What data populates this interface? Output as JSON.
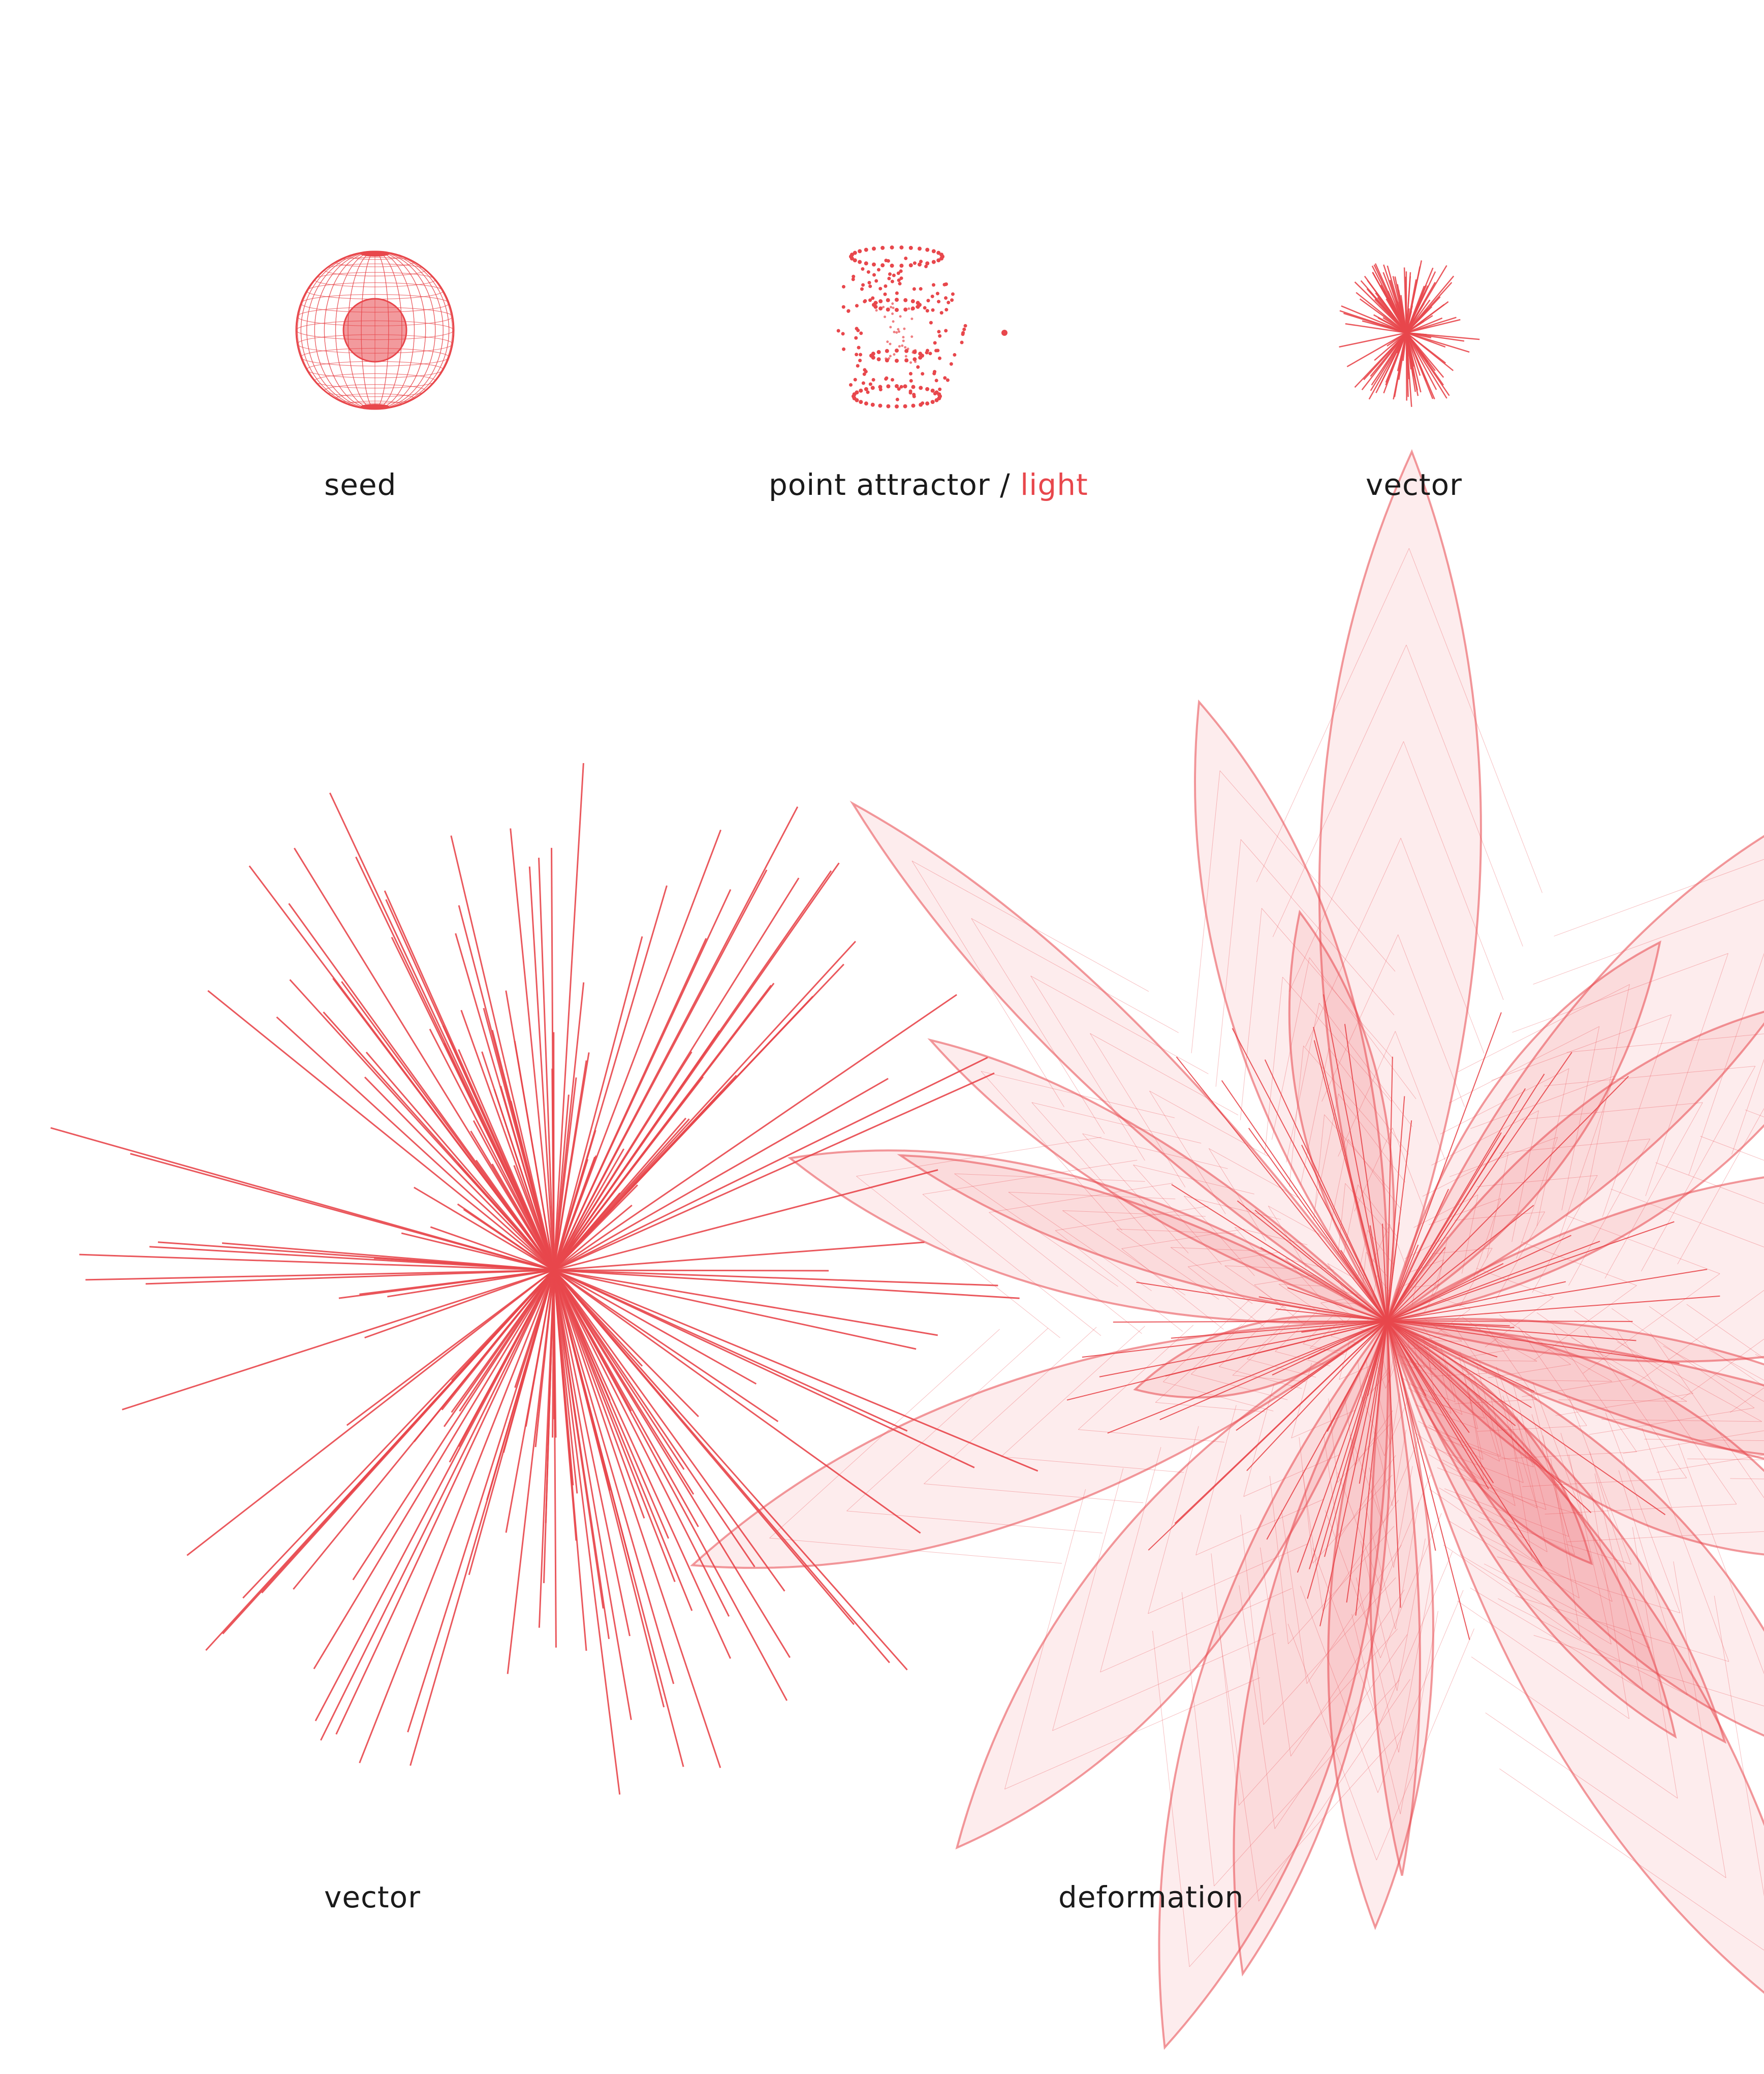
{
  "labels": {
    "seed": "seed",
    "point_attractor": "point attractor /",
    "light": "light",
    "vector_small": "vector",
    "vector_large": "vector",
    "deformation": "deformation"
  },
  "colors": {
    "accent": "#e8474c",
    "text": "#1a1a1a",
    "background": "#ffffff"
  }
}
